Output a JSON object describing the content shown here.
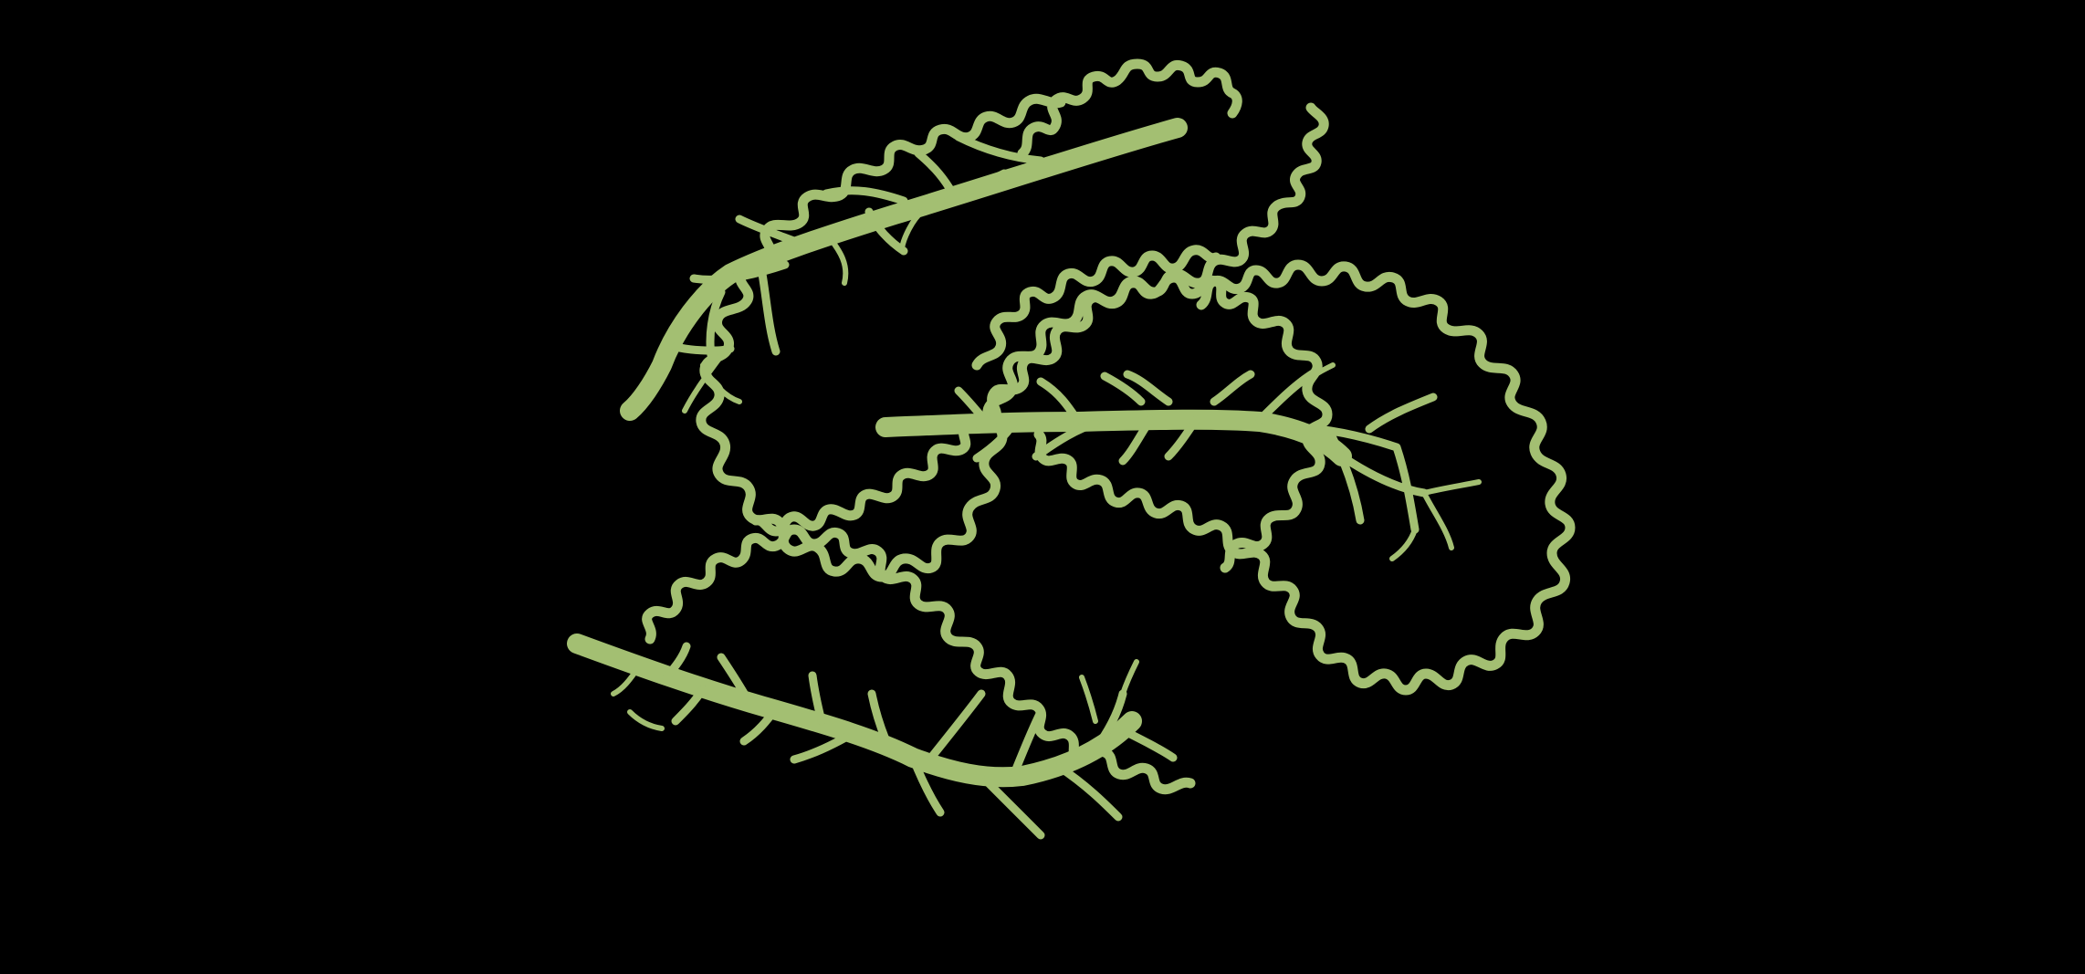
{
  "illustration": {
    "subject": "three-kale-leaves-icon",
    "background_color": "#000000",
    "leaf_color": "#A3BF72",
    "leaves": [
      {
        "name": "leaf-top-left"
      },
      {
        "name": "leaf-middle-right"
      },
      {
        "name": "leaf-bottom-left"
      }
    ]
  }
}
